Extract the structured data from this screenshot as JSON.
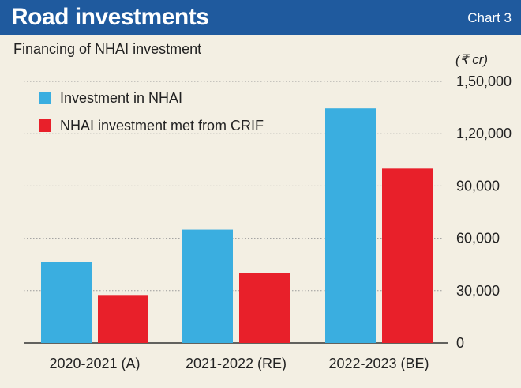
{
  "header": {
    "title": "Road investments",
    "chart_number": "Chart 3"
  },
  "chart_data": {
    "type": "bar",
    "title": "Financing of NHAI investment",
    "unit": "(₹ cr)",
    "categories": [
      "2020-2021 (A)",
      "2021-2022 (RE)",
      "2022-2023 (BE)"
    ],
    "series": [
      {
        "name": "Investment in NHAI",
        "color": "#3aaee0",
        "values": [
          46500,
          65000,
          134500
        ]
      },
      {
        "name": "NHAI investment met from CRIF",
        "color": "#e8202a",
        "values": [
          27500,
          40000,
          100000
        ]
      }
    ],
    "yticks": [
      "0",
      "30,000",
      "60,000",
      "90,000",
      "1,20,000",
      "1,50,000"
    ],
    "ylim": [
      0,
      150000
    ],
    "grid": true,
    "legend_position": "top-left"
  }
}
